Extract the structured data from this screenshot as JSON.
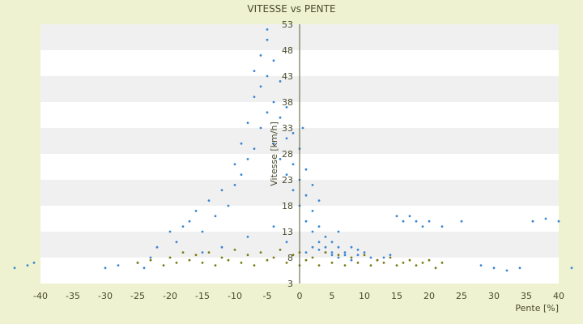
{
  "chart_data": {
    "type": "scatter",
    "title": "VITESSE vs PENTE",
    "xlabel": "Pente [%]",
    "ylabel": "Vitesse [km/h]",
    "xlim": [
      -40,
      40
    ],
    "ylim": [
      3,
      53
    ],
    "x_ticks": [
      -40,
      -35,
      -30,
      -25,
      -20,
      -15,
      -10,
      -5,
      0,
      5,
      10,
      15,
      20,
      25,
      30,
      35,
      40
    ],
    "x_tick_labels": [
      "-40",
      "-35",
      "-30",
      "-25",
      "-20",
      "-15",
      "-10",
      "-5",
      "0",
      "5",
      "10",
      "15",
      "20",
      "25",
      "30",
      "35",
      "40"
    ],
    "y_ticks": [
      3,
      8,
      13,
      18,
      23,
      28,
      33,
      38,
      43,
      48,
      53
    ],
    "y_tick_labels": [
      "3",
      "8",
      "13",
      "18",
      "23",
      "28",
      "33",
      "38",
      "43",
      "48",
      "53"
    ],
    "grid": "horizontal alternating bands",
    "legend": "none",
    "series": [
      {
        "color": "#3a86d0",
        "points": [
          [
            -44,
            6
          ],
          [
            -42,
            6.5
          ],
          [
            -41,
            7
          ],
          [
            -30,
            6
          ],
          [
            -28,
            6.5
          ],
          [
            -25,
            7
          ],
          [
            -24,
            6
          ],
          [
            -23,
            8
          ],
          [
            -22,
            10
          ],
          [
            -20,
            13
          ],
          [
            -19,
            11
          ],
          [
            -18,
            14
          ],
          [
            -17,
            15
          ],
          [
            -16,
            17
          ],
          [
            -15,
            13
          ],
          [
            -14,
            19
          ],
          [
            -13,
            16
          ],
          [
            -12,
            21
          ],
          [
            -11,
            18
          ],
          [
            -10,
            22
          ],
          [
            -10,
            26
          ],
          [
            -9,
            24
          ],
          [
            -9,
            30
          ],
          [
            -8,
            27
          ],
          [
            -8,
            34
          ],
          [
            -7,
            29
          ],
          [
            -7,
            39
          ],
          [
            -7,
            44
          ],
          [
            -6,
            33
          ],
          [
            -6,
            41
          ],
          [
            -6,
            47
          ],
          [
            -5,
            36
          ],
          [
            -5,
            43
          ],
          [
            -5,
            50
          ],
          [
            -5,
            52
          ],
          [
            -4,
            30
          ],
          [
            -4,
            38
          ],
          [
            -4,
            46
          ],
          [
            -3,
            27
          ],
          [
            -3,
            35
          ],
          [
            -3,
            42
          ],
          [
            -2,
            24
          ],
          [
            -2,
            31
          ],
          [
            -2,
            37
          ],
          [
            -1,
            21
          ],
          [
            -1,
            26
          ],
          [
            -1,
            32
          ],
          [
            0,
            18
          ],
          [
            0,
            23
          ],
          [
            0,
            29
          ],
          [
            0.5,
            33
          ],
          [
            1,
            15
          ],
          [
            1,
            20
          ],
          [
            1,
            25
          ],
          [
            2,
            13
          ],
          [
            2,
            17
          ],
          [
            2,
            22
          ],
          [
            3,
            11
          ],
          [
            3,
            14
          ],
          [
            3,
            19
          ],
          [
            4,
            10
          ],
          [
            4,
            12
          ],
          [
            5,
            9
          ],
          [
            5,
            11
          ],
          [
            6,
            10
          ],
          [
            6,
            13
          ],
          [
            7,
            9
          ],
          [
            8,
            10
          ],
          [
            9,
            8.5
          ],
          [
            10,
            9
          ],
          [
            11,
            8
          ],
          [
            12,
            7.5
          ],
          [
            13,
            8
          ],
          [
            14,
            8.5
          ],
          [
            15,
            16
          ],
          [
            16,
            15
          ],
          [
            17,
            16
          ],
          [
            18,
            15
          ],
          [
            19,
            14
          ],
          [
            20,
            15
          ],
          [
            22,
            14
          ],
          [
            25,
            15
          ],
          [
            28,
            6.5
          ],
          [
            30,
            6
          ],
          [
            32,
            5.5
          ],
          [
            34,
            6
          ],
          [
            36,
            15
          ],
          [
            38,
            15.5
          ],
          [
            40,
            15
          ],
          [
            42,
            6
          ],
          [
            -15,
            9
          ],
          [
            -12,
            10
          ],
          [
            -8,
            12
          ],
          [
            -4,
            14
          ],
          [
            -2,
            11
          ],
          [
            1,
            9
          ],
          [
            2,
            10
          ],
          [
            3,
            9.5
          ],
          [
            4,
            9
          ],
          [
            5,
            8.5
          ],
          [
            6,
            8
          ],
          [
            7,
            8.5
          ],
          [
            8,
            7.5
          ],
          [
            9,
            9.5
          ]
        ]
      },
      {
        "color": "#7a7a10",
        "points": [
          [
            -25,
            7
          ],
          [
            -23,
            7.5
          ],
          [
            -21,
            6.5
          ],
          [
            -20,
            8
          ],
          [
            -19,
            7
          ],
          [
            -18,
            9
          ],
          [
            -17,
            7.5
          ],
          [
            -16,
            8.5
          ],
          [
            -15,
            7
          ],
          [
            -14,
            9
          ],
          [
            -13,
            6.5
          ],
          [
            -12,
            8
          ],
          [
            -11,
            7.5
          ],
          [
            -10,
            9.5
          ],
          [
            -9,
            7
          ],
          [
            -8,
            8.5
          ],
          [
            -7,
            6.5
          ],
          [
            -6,
            9
          ],
          [
            -5,
            7.5
          ],
          [
            -4,
            8
          ],
          [
            -3,
            9.5
          ],
          [
            -2,
            7
          ],
          [
            -1,
            8.5
          ],
          [
            0,
            6.5
          ],
          [
            0,
            9
          ],
          [
            1,
            7.5
          ],
          [
            2,
            8
          ],
          [
            3,
            6.5
          ],
          [
            4,
            9
          ],
          [
            5,
            7
          ],
          [
            6,
            8.5
          ],
          [
            7,
            6.5
          ],
          [
            8,
            8
          ],
          [
            9,
            7
          ],
          [
            10,
            8.5
          ],
          [
            11,
            6.5
          ],
          [
            12,
            7.5
          ],
          [
            13,
            7
          ],
          [
            14,
            8
          ],
          [
            15,
            6.5
          ],
          [
            16,
            7
          ],
          [
            17,
            7.5
          ],
          [
            18,
            6.5
          ],
          [
            19,
            7
          ],
          [
            20,
            7.5
          ],
          [
            21,
            6
          ],
          [
            22,
            7
          ]
        ]
      }
    ]
  }
}
